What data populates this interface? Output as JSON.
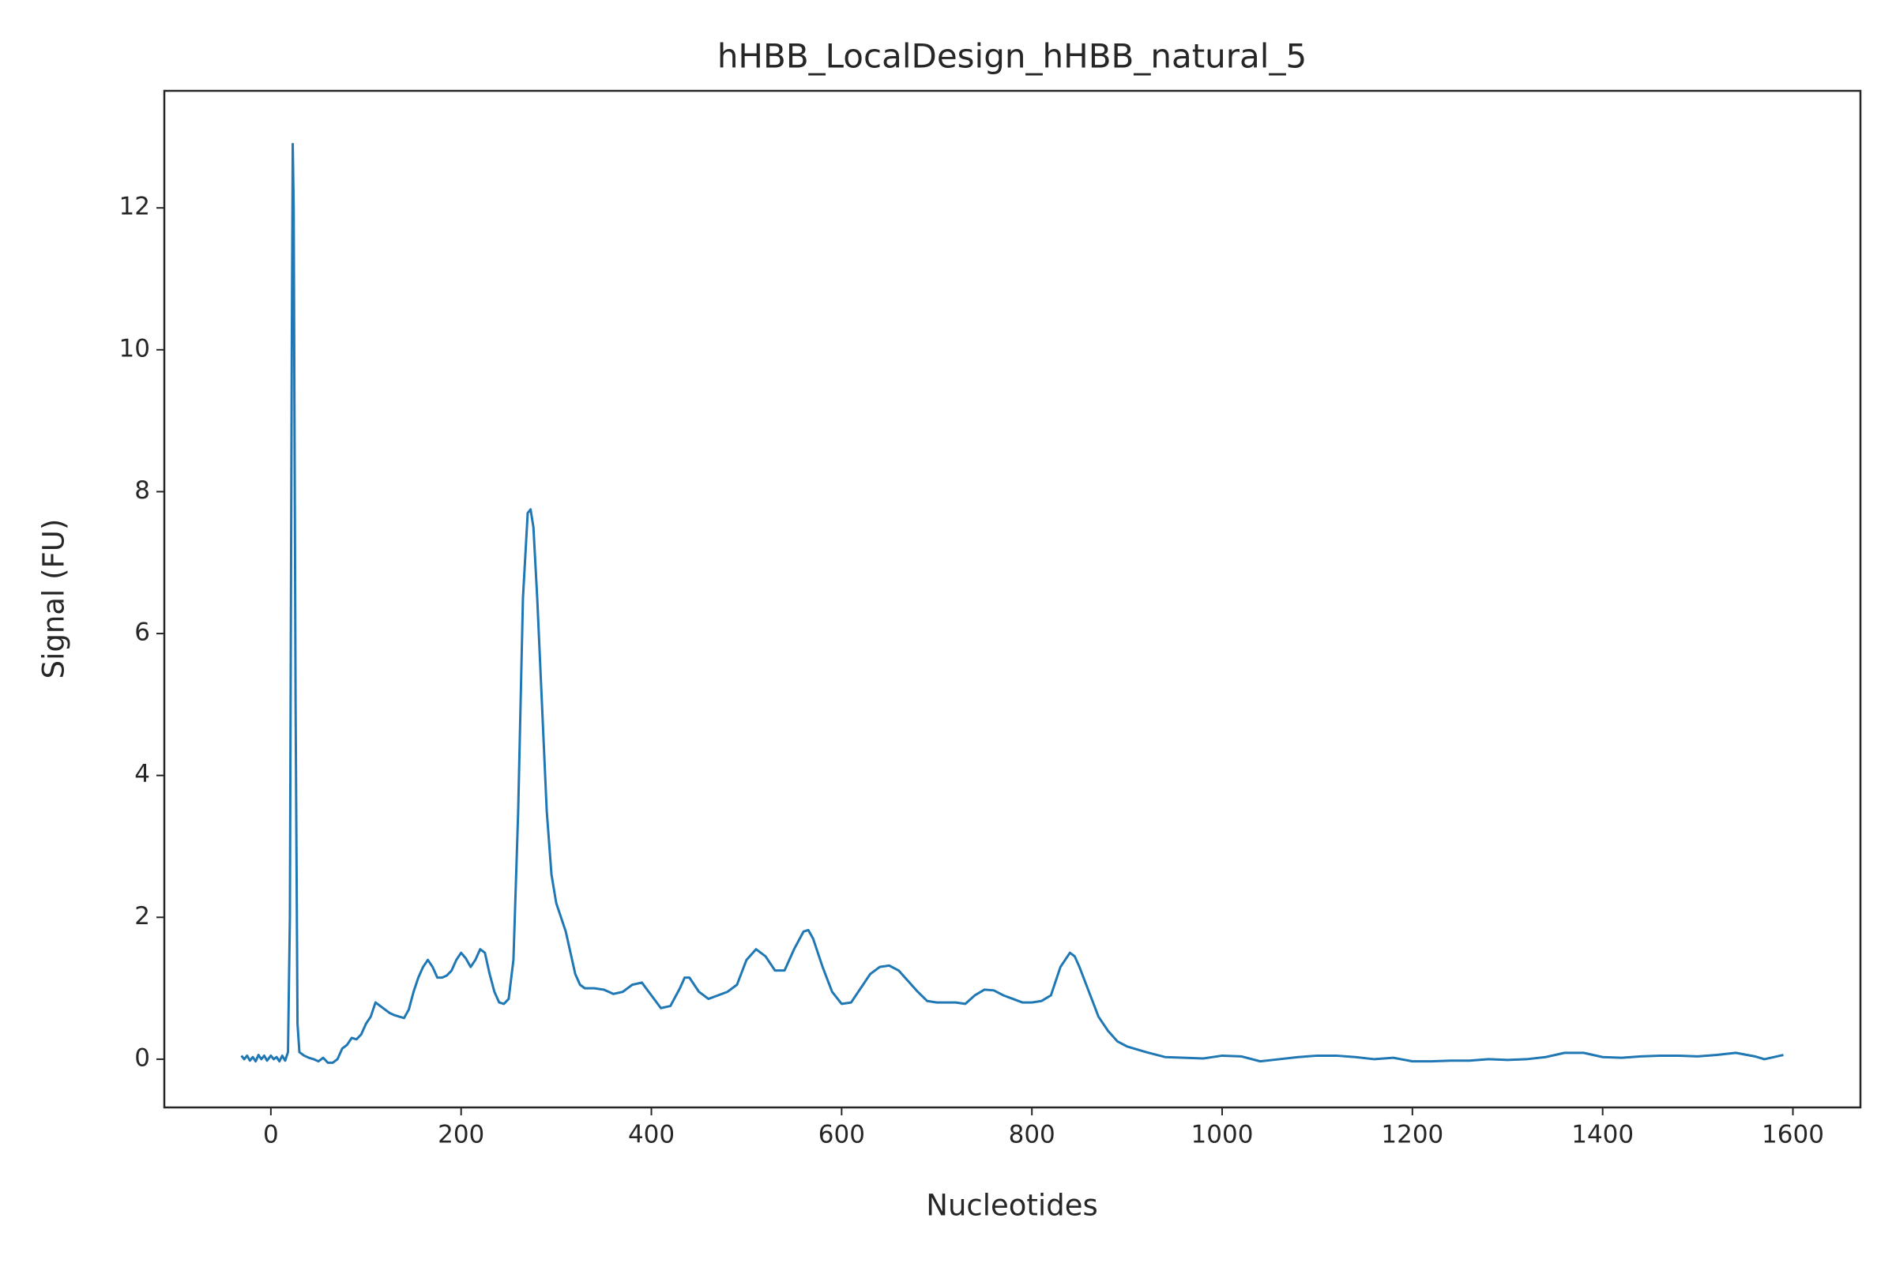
{
  "chart_data": {
    "type": "line",
    "title": "hHBB_LocalDesign_hHBB_natural_5",
    "xlabel": "Nucleotides",
    "ylabel": "Signal (FU)",
    "x": [
      -31,
      -28,
      -25,
      -22,
      -19,
      -16,
      -13,
      -10,
      -7,
      -4,
      0,
      3,
      6,
      9,
      12,
      15,
      18,
      20,
      22,
      23,
      24,
      26,
      28,
      30,
      35,
      40,
      45,
      50,
      55,
      60,
      65,
      70,
      75,
      80,
      85,
      90,
      95,
      100,
      105,
      110,
      115,
      120,
      125,
      130,
      135,
      140,
      145,
      150,
      155,
      160,
      165,
      170,
      175,
      180,
      185,
      190,
      195,
      200,
      205,
      210,
      215,
      220,
      225,
      230,
      235,
      240,
      245,
      250,
      255,
      260,
      265,
      270,
      273,
      276,
      280,
      285,
      290,
      295,
      300,
      305,
      310,
      315,
      320,
      325,
      330,
      340,
      350,
      360,
      370,
      380,
      390,
      400,
      410,
      420,
      430,
      435,
      440,
      450,
      460,
      470,
      480,
      490,
      500,
      510,
      520,
      530,
      540,
      550,
      560,
      565,
      570,
      580,
      590,
      600,
      610,
      620,
      630,
      640,
      650,
      660,
      670,
      680,
      690,
      700,
      710,
      720,
      730,
      740,
      750,
      760,
      770,
      780,
      790,
      800,
      810,
      820,
      830,
      840,
      845,
      850,
      860,
      870,
      880,
      890,
      900,
      920,
      940,
      960,
      980,
      1000,
      1020,
      1040,
      1060,
      1080,
      1100,
      1120,
      1140,
      1160,
      1180,
      1200,
      1220,
      1240,
      1260,
      1280,
      1300,
      1320,
      1340,
      1360,
      1380,
      1400,
      1420,
      1440,
      1460,
      1480,
      1500,
      1520,
      1540,
      1560,
      1570,
      1590
    ],
    "series": [
      {
        "name": "signal",
        "color": "#1f77b4",
        "values": [
          0.05,
          0.0,
          0.05,
          -0.02,
          0.03,
          -0.03,
          0.06,
          0.0,
          0.05,
          -0.02,
          0.05,
          0.0,
          0.03,
          -0.03,
          0.05,
          -0.02,
          0.1,
          2,
          10,
          12.9,
          12,
          5,
          0.5,
          0.1,
          0.05,
          0.02,
          0.0,
          -0.03,
          0.02,
          -0.05,
          -0.05,
          0.0,
          0.15,
          0.2,
          0.3,
          0.28,
          0.35,
          0.5,
          0.6,
          0.8,
          0.75,
          0.7,
          0.65,
          0.62,
          0.6,
          0.58,
          0.7,
          0.95,
          1.15,
          1.3,
          1.4,
          1.3,
          1.15,
          1.15,
          1.18,
          1.25,
          1.4,
          1.5,
          1.42,
          1.3,
          1.4,
          1.55,
          1.5,
          1.2,
          0.95,
          0.8,
          0.78,
          0.85,
          1.4,
          3.5,
          6.5,
          7.7,
          7.75,
          7.5,
          6.5,
          5,
          3.5,
          2.6,
          2.2,
          2.0,
          1.8,
          1.5,
          1.2,
          1.05,
          1.0,
          1.0,
          0.98,
          0.92,
          0.95,
          1.05,
          1.08,
          0.9,
          0.72,
          0.75,
          1.0,
          1.15,
          1.15,
          0.95,
          0.85,
          0.9,
          0.95,
          1.05,
          1.4,
          1.55,
          1.45,
          1.25,
          1.25,
          1.55,
          1.8,
          1.82,
          1.7,
          1.3,
          0.95,
          0.78,
          0.8,
          1.0,
          1.2,
          1.3,
          1.32,
          1.25,
          1.1,
          0.95,
          0.82,
          0.8,
          0.8,
          0.8,
          0.78,
          0.9,
          0.98,
          0.97,
          0.9,
          0.85,
          0.8,
          0.8,
          0.82,
          0.9,
          1.3,
          1.5,
          1.45,
          1.3,
          0.95,
          0.6,
          0.4,
          0.25,
          0.18,
          0.1,
          0.03,
          0.02,
          0.01,
          0.05,
          0.04,
          -0.03,
          0.0,
          0.03,
          0.05,
          0.05,
          0.03,
          0.0,
          0.02,
          -0.03,
          -0.03,
          -0.02,
          -0.02,
          0.0,
          -0.01,
          0.0,
          0.03,
          0.09,
          0.09,
          0.03,
          0.02,
          0.04,
          0.05,
          0.05,
          0.04,
          0.06,
          0.09,
          0.04,
          0.0,
          0.06
        ]
      }
    ],
    "xlim": [
      -112,
      1671
    ],
    "ylim": [
      -0.68,
      13.65
    ],
    "xticks": [
      0,
      200,
      400,
      600,
      800,
      1000,
      1200,
      1400,
      1600
    ],
    "yticks": [
      0,
      2,
      4,
      6,
      8,
      10,
      12
    ],
    "grid": false
  }
}
